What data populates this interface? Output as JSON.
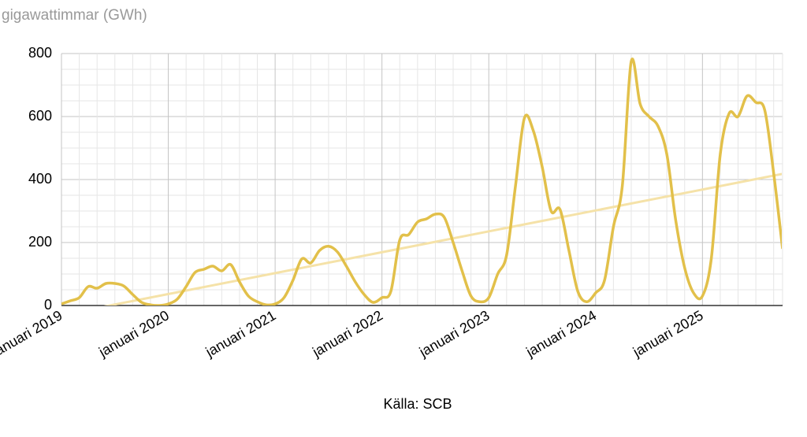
{
  "chart_data": {
    "type": "line",
    "y_label": "gigawattimmar (GWh)",
    "source": "Källa: SCB",
    "categories": [
      "januari 2019",
      null,
      null,
      null,
      null,
      null,
      null,
      null,
      null,
      null,
      null,
      null,
      "januari 2020",
      null,
      null,
      null,
      null,
      null,
      null,
      null,
      null,
      null,
      null,
      null,
      "januari 2021",
      null,
      null,
      null,
      null,
      null,
      null,
      null,
      null,
      null,
      null,
      null,
      "januari 2022",
      null,
      null,
      null,
      null,
      null,
      null,
      null,
      null,
      null,
      null,
      null,
      "januari 2023",
      null,
      null,
      null,
      null,
      null,
      null,
      null,
      null,
      null,
      null,
      null,
      "januari 2024",
      null,
      null,
      null,
      null,
      null,
      null,
      null,
      null,
      null,
      null,
      null,
      "januari 2025",
      null,
      null,
      null,
      null,
      null,
      null,
      null,
      null,
      null
    ],
    "series": [
      {
        "color": "#e2c04a",
        "values": [
          5,
          15,
          25,
          60,
          55,
          70,
          70,
          62,
          35,
          10,
          2,
          0,
          5,
          20,
          60,
          105,
          115,
          125,
          110,
          130,
          75,
          30,
          12,
          2,
          5,
          25,
          80,
          148,
          135,
          175,
          188,
          170,
          125,
          75,
          35,
          10,
          25,
          45,
          208,
          225,
          265,
          275,
          290,
          280,
          200,
          110,
          30,
          12,
          25,
          100,
          160,
          380,
          595,
          555,
          440,
          300,
          305,
          175,
          45,
          12,
          40,
          80,
          250,
          380,
          775,
          640,
          600,
          570,
          480,
          270,
          120,
          40,
          30,
          150,
          480,
          610,
          600,
          665,
          645,
          620,
          420,
          180
        ]
      }
    ],
    "trend": {
      "color": "#f5e2a8",
      "values": [
        -30,
        418
      ]
    },
    "ylim": [
      0,
      800
    ],
    "yticks": [
      0,
      200,
      400,
      600,
      800
    ],
    "grid": true
  }
}
